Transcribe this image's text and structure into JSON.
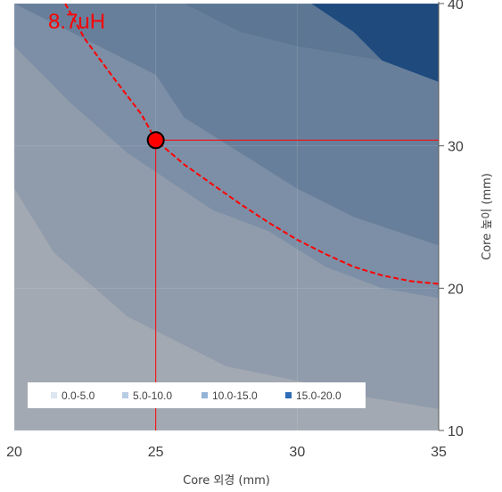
{
  "chart_data": {
    "type": "contour",
    "xlabel": "Core 외경 (mm)",
    "ylabel": "Core 높이 (mm)",
    "xlim": [
      20,
      35
    ],
    "ylim": [
      10,
      40
    ],
    "x_ticks": [
      "20",
      "25",
      "30",
      "35"
    ],
    "y_ticks": [
      "10",
      "20",
      "30",
      "40"
    ],
    "legend_position": "bottom-left",
    "bands": [
      {
        "name": "0.0-5.0",
        "color": "#dce6f1"
      },
      {
        "name": "5.0-10.0",
        "color": "#b8cce4"
      },
      {
        "name": "10.0-15.0",
        "color": "#95b3d7"
      },
      {
        "name": "15.0-20.0",
        "color": "#2e6cb5"
      }
    ],
    "contour_bounds": [
      [
        [
          20,
          27
        ],
        [
          21.4,
          22.5
        ],
        [
          24,
          18
        ],
        [
          25,
          17
        ],
        [
          27.5,
          14.5
        ],
        [
          30,
          13.5
        ],
        [
          32,
          12.5
        ],
        [
          35,
          11.5
        ]
      ],
      [
        [
          20,
          37
        ],
        [
          22,
          33
        ],
        [
          24,
          29.5
        ],
        [
          27,
          25.5
        ],
        [
          29,
          24
        ],
        [
          31,
          21.5
        ],
        [
          33,
          20
        ],
        [
          35,
          19.3
        ]
      ],
      [
        [
          20,
          40
        ],
        [
          25,
          35
        ],
        [
          26,
          32
        ],
        [
          28,
          29.5
        ],
        [
          30,
          27
        ],
        [
          32,
          25
        ],
        [
          35,
          23
        ]
      ],
      [
        [
          26,
          40
        ],
        [
          28,
          38
        ],
        [
          30,
          37
        ],
        [
          33,
          36
        ],
        [
          35,
          34.5
        ]
      ],
      [
        [
          30.5,
          40
        ],
        [
          32,
          38
        ],
        [
          33,
          36
        ],
        [
          35,
          34.5
        ]
      ]
    ],
    "curve": {
      "label": "8.7uH",
      "points": [
        [
          21.8,
          40
        ],
        [
          22.5,
          37.5
        ],
        [
          23.5,
          34.8
        ],
        [
          24.5,
          32.2
        ],
        [
          25,
          30.4
        ],
        [
          26,
          28.7
        ],
        [
          27,
          27.3
        ],
        [
          28,
          25.9
        ],
        [
          29,
          24.6
        ],
        [
          30,
          23.4
        ],
        [
          31,
          22.4
        ],
        [
          32,
          21.5
        ],
        [
          33,
          20.9
        ],
        [
          34,
          20.5
        ],
        [
          35,
          20.3
        ]
      ]
    },
    "marker": {
      "x": 25,
      "y": 30.4
    },
    "ref_lines": {
      "x": 25,
      "y": 30.4
    }
  }
}
